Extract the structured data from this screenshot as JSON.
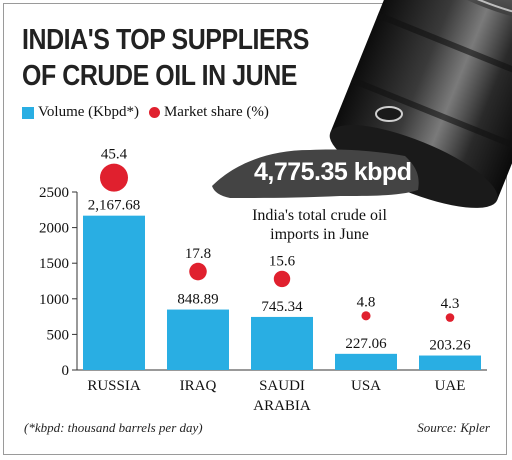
{
  "title_line1": "INDIA'S TOP SUPPLIERS",
  "title_line2": "OF CRUDE OIL IN JUNE",
  "legend": {
    "volume": "Volume (Kbpd*)",
    "share": "Market share (%)"
  },
  "total": {
    "value": "4,775.35 kbpd",
    "note": "India's total crude oil imports in June"
  },
  "footnote": "(*kbpd: thousand barrels per day)",
  "source": "Source: Kpler",
  "colors": {
    "bar": "#29aee3",
    "dot": "#e0202e"
  },
  "chart_data": {
    "type": "bar",
    "categories": [
      "RUSSIA",
      "IRAQ",
      "SAUDI ARABIA",
      "USA",
      "UAE"
    ],
    "category_lines": [
      [
        "RUSSIA"
      ],
      [
        "IRAQ"
      ],
      [
        "SAUDI",
        "ARABIA"
      ],
      [
        "USA"
      ],
      [
        "UAE"
      ]
    ],
    "series": [
      {
        "name": "Volume (Kbpd*)",
        "values": [
          2167.68,
          848.89,
          745.34,
          227.06,
          203.26
        ],
        "labels": [
          "2,167.68",
          "848.89",
          "745.34",
          "227.06",
          "203.26"
        ]
      },
      {
        "name": "Market share (%)",
        "values": [
          45.4,
          17.8,
          15.6,
          4.8,
          4.3
        ],
        "labels": [
          "45.4",
          "17.8",
          "15.6",
          "4.8",
          "4.3"
        ]
      }
    ],
    "yticks": [
      0,
      500,
      1000,
      1500,
      2000,
      2500
    ],
    "ylim": [
      0,
      2500
    ]
  }
}
